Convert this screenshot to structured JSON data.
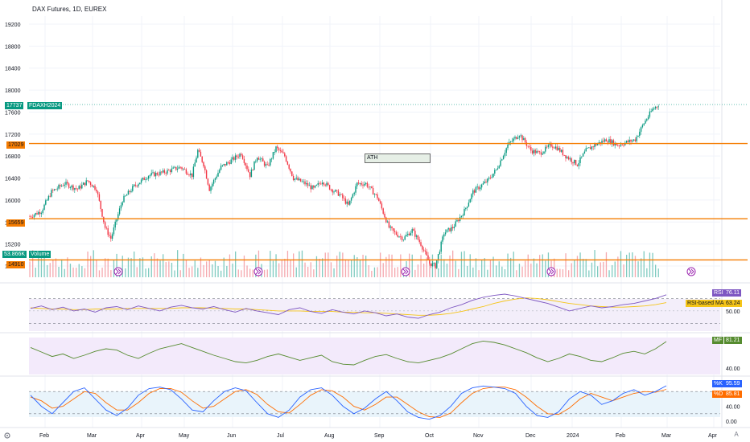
{
  "header": {
    "title": "DAX Futures, 1D, EUREX"
  },
  "colors": {
    "up": "#089981",
    "down": "#f23645",
    "hline": "#f57c00",
    "rsi": "#7e57c2",
    "rsi_ma": "#f5c518",
    "mf": "#558b2f",
    "k": "#2962ff",
    "d": "#ff6d00",
    "grid": "#f0f3fa",
    "text": "#131722"
  },
  "tags": {
    "price_last": "17737",
    "symbol": "FDAXH2024",
    "level_high": "17029",
    "level_mid": "15659",
    "level_low": "14910",
    "volume_value": "53.866K",
    "volume_label": "Volume",
    "ath_label": "ATH",
    "rsi_label": "RSI",
    "rsi_value": "76.11",
    "rsi_ma_label": "RSI-based MA",
    "rsi_ma_value": "63.24",
    "mf_label": "MF",
    "mf_value": "81.21",
    "k_label": "%K",
    "k_value": "95.59",
    "d_label": "%D",
    "d_value": "85.81"
  },
  "icons": {
    "event_marker": "fast-forward-circle-icon",
    "settings": "gear-icon",
    "autoscale": "auto-scale-icon"
  },
  "axes": {
    "price_ticks": [
      "19200",
      "18800",
      "18400",
      "18000",
      "17600",
      "17200",
      "16800",
      "16400",
      "16000",
      "15600",
      "15200",
      "14800"
    ],
    "rsi_ticks": [
      "50.00"
    ],
    "mf_ticks": [
      "40.00"
    ],
    "stoch_ticks": [
      "40.00",
      "0.00"
    ],
    "time_ticks": [
      "Feb",
      "Mar",
      "Apr",
      "May",
      "Jun",
      "Jul",
      "Aug",
      "Sep",
      "Oct",
      "Nov",
      "Dec",
      "2024",
      "Feb",
      "Mar",
      "Apr"
    ],
    "corner_label": "A"
  },
  "chart_data": {
    "type": "candlestick",
    "ylim": [
      14700,
      19400
    ],
    "levels": [
      17029,
      15659,
      14910
    ],
    "price_path": [
      [
        0,
        15700
      ],
      [
        8,
        15800
      ],
      [
        15,
        16150
      ],
      [
        24,
        16300
      ],
      [
        33,
        16200
      ],
      [
        40,
        16350
      ],
      [
        46,
        16200
      ],
      [
        52,
        15500
      ],
      [
        56,
        15300
      ],
      [
        64,
        16000
      ],
      [
        72,
        16250
      ],
      [
        82,
        16450
      ],
      [
        92,
        16500
      ],
      [
        104,
        16600
      ],
      [
        112,
        16450
      ],
      [
        116,
        16900
      ],
      [
        120,
        16650
      ],
      [
        124,
        16200
      ],
      [
        132,
        16600
      ],
      [
        138,
        16700
      ],
      [
        146,
        16850
      ],
      [
        152,
        16450
      ],
      [
        157,
        16800
      ],
      [
        164,
        16600
      ],
      [
        170,
        16950
      ],
      [
        176,
        16800
      ],
      [
        182,
        16400
      ],
      [
        190,
        16300
      ],
      [
        196,
        16200
      ],
      [
        202,
        16350
      ],
      [
        208,
        16200
      ],
      [
        214,
        16100
      ],
      [
        220,
        15900
      ],
      [
        226,
        16300
      ],
      [
        232,
        16300
      ],
      [
        240,
        16050
      ],
      [
        248,
        15500
      ],
      [
        252,
        15400
      ],
      [
        258,
        15300
      ],
      [
        264,
        15450
      ],
      [
        270,
        15200
      ],
      [
        276,
        14850
      ],
      [
        280,
        14800
      ],
      [
        286,
        15400
      ],
      [
        292,
        15500
      ],
      [
        300,
        15800
      ],
      [
        306,
        16150
      ],
      [
        316,
        16350
      ],
      [
        322,
        16550
      ],
      [
        330,
        17000
      ],
      [
        338,
        17200
      ],
      [
        346,
        16900
      ],
      [
        352,
        16850
      ],
      [
        360,
        17000
      ],
      [
        364,
        16950
      ],
      [
        370,
        16800
      ],
      [
        378,
        16650
      ],
      [
        384,
        16900
      ],
      [
        390,
        17000
      ],
      [
        398,
        17100
      ],
      [
        406,
        17000
      ],
      [
        412,
        17050
      ],
      [
        418,
        17100
      ],
      [
        424,
        17400
      ],
      [
        430,
        17650
      ],
      [
        434,
        17737
      ]
    ],
    "volume_ylim": [
      0,
      160000
    ],
    "rsi_series": [
      54,
      58,
      52,
      56,
      50,
      53,
      48,
      55,
      57,
      52,
      58,
      54,
      50,
      56,
      59,
      55,
      53,
      57,
      52,
      48,
      54,
      50,
      47,
      44,
      52,
      55,
      49,
      46,
      52,
      48,
      45,
      50,
      47,
      42,
      45,
      40,
      38,
      44,
      48,
      55,
      60,
      67,
      72,
      75,
      77,
      74,
      70,
      66,
      62,
      56,
      50,
      54,
      58,
      55,
      57,
      60,
      62,
      66,
      70,
      76
    ],
    "rsi_ma_series": [
      55,
      54,
      53,
      53,
      52,
      52,
      53,
      53,
      53,
      54,
      54,
      54,
      54,
      54,
      55,
      55,
      55,
      54,
      54,
      53,
      53,
      52,
      51,
      50,
      50,
      50,
      49,
      49,
      49,
      48,
      48,
      47,
      47,
      46,
      45,
      44,
      43,
      43,
      44,
      46,
      49,
      53,
      57,
      62,
      66,
      69,
      71,
      70,
      68,
      65,
      62,
      60,
      58,
      57,
      56,
      56,
      57,
      58,
      60,
      63.24
    ],
    "mf_series": [
      72,
      65,
      58,
      62,
      55,
      60,
      66,
      70,
      68,
      60,
      55,
      63,
      70,
      74,
      78,
      72,
      66,
      60,
      55,
      50,
      48,
      52,
      58,
      62,
      57,
      52,
      56,
      60,
      50,
      46,
      45,
      52,
      58,
      61,
      55,
      50,
      48,
      52,
      56,
      62,
      70,
      78,
      82,
      80,
      76,
      70,
      64,
      56,
      50,
      55,
      62,
      58,
      52,
      50,
      56,
      63,
      66,
      62,
      70,
      81.21
    ],
    "k_series": [
      70,
      40,
      20,
      50,
      80,
      90,
      60,
      30,
      15,
      35,
      70,
      88,
      92,
      85,
      60,
      30,
      25,
      55,
      80,
      90,
      82,
      50,
      20,
      10,
      30,
      65,
      85,
      90,
      70,
      40,
      20,
      35,
      60,
      80,
      55,
      25,
      10,
      5,
      15,
      40,
      75,
      90,
      95,
      92,
      88,
      75,
      40,
      15,
      10,
      25,
      60,
      80,
      70,
      45,
      55,
      75,
      85,
      70,
      80,
      95.59
    ],
    "d_series": [
      65,
      55,
      35,
      40,
      60,
      80,
      75,
      50,
      30,
      30,
      50,
      75,
      88,
      88,
      78,
      55,
      35,
      40,
      60,
      80,
      85,
      72,
      45,
      25,
      22,
      45,
      70,
      85,
      82,
      65,
      40,
      30,
      45,
      65,
      65,
      45,
      25,
      12,
      10,
      22,
      50,
      75,
      88,
      92,
      92,
      85,
      65,
      40,
      20,
      18,
      35,
      60,
      75,
      65,
      55,
      65,
      75,
      80,
      78,
      85.81
    ]
  }
}
